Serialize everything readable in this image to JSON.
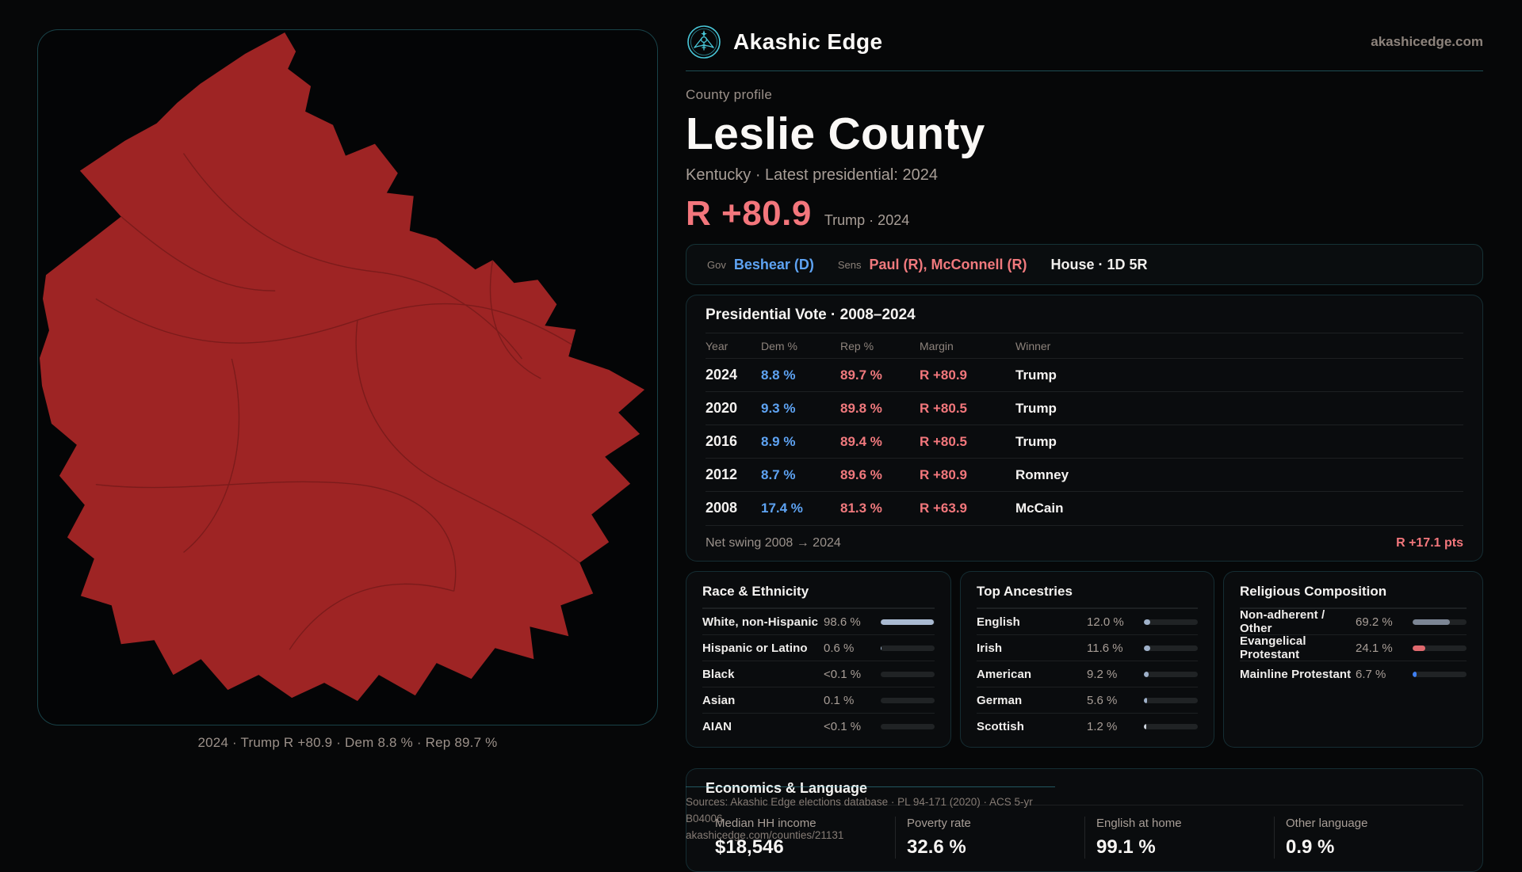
{
  "brand": {
    "name": "Akashic Edge",
    "domain": "akashicedge.com"
  },
  "profile": {
    "kicker": "County profile",
    "title": "Leslie County",
    "subtitle": "Kentucky · Latest presidential: 2024",
    "margin_big": "R +80.9",
    "margin_context": "Trump · 2024"
  },
  "map": {
    "caption": "2024 · Trump R +80.9 · Dem 8.8 % · Rep 89.7 %"
  },
  "officials": {
    "gov_label": "Gov",
    "gov_value": "Beshear (D)",
    "sens_label": "Sens",
    "sens_value": "Paul (R), McConnell (R)",
    "house_value": "House · 1D 5R"
  },
  "vote_table": {
    "title": "Presidential Vote · 2008–2024",
    "columns": {
      "year": "Year",
      "dem": "Dem %",
      "rep": "Rep %",
      "margin": "Margin",
      "winner": "Winner"
    },
    "rows": [
      {
        "year": "2024",
        "dem": "8.8 %",
        "rep": "89.7 %",
        "margin": "R +80.9",
        "winner": "Trump"
      },
      {
        "year": "2020",
        "dem": "9.3 %",
        "rep": "89.8 %",
        "margin": "R +80.5",
        "winner": "Trump"
      },
      {
        "year": "2016",
        "dem": "8.9 %",
        "rep": "89.4 %",
        "margin": "R +80.5",
        "winner": "Trump"
      },
      {
        "year": "2012",
        "dem": "8.7 %",
        "rep": "89.6 %",
        "margin": "R +80.9",
        "winner": "Romney"
      },
      {
        "year": "2008",
        "dem": "17.4 %",
        "rep": "81.3 %",
        "margin": "R +63.9",
        "winner": "McCain"
      }
    ],
    "net_swing_label": "Net swing 2008 → 2024",
    "net_swing_value": "R +17.1 pts"
  },
  "panels": [
    {
      "title": "Race & Ethnicity",
      "rows": [
        {
          "label": "White, non-Hispanic",
          "value": "98.6 %",
          "pct": 98.6,
          "fill": "#a9bad1"
        },
        {
          "label": "Hispanic or Latino",
          "value": "0.6 %",
          "pct": 0.6,
          "fill": "#a9bad1"
        },
        {
          "label": "Black",
          "value": "<0.1 %",
          "pct": 0.05,
          "fill": "#a9bad1"
        },
        {
          "label": "Asian",
          "value": "0.1 %",
          "pct": 0.1,
          "fill": "#a9bad1"
        },
        {
          "label": "AIAN",
          "value": "<0.1 %",
          "pct": 0.05,
          "fill": "#a9bad1"
        }
      ]
    },
    {
      "title": "Top Ancestries",
      "rows": [
        {
          "label": "English",
          "value": "12.0 %",
          "pct": 12.0,
          "fill": "#9fb1c9"
        },
        {
          "label": "Irish",
          "value": "11.6 %",
          "pct": 11.6,
          "fill": "#9fb1c9"
        },
        {
          "label": "American",
          "value": "9.2 %",
          "pct": 9.2,
          "fill": "#9fb1c9"
        },
        {
          "label": "German",
          "value": "5.6 %",
          "pct": 5.6,
          "fill": "#9fb1c9"
        },
        {
          "label": "Scottish",
          "value": "1.2 %",
          "pct": 1.2,
          "fill": "#cfd6df"
        }
      ]
    },
    {
      "title": "Religious Composition",
      "rows": [
        {
          "label": "Non-adherent / Other",
          "value": "69.2 %",
          "pct": 69.2,
          "fill": "#7c8695"
        },
        {
          "label": "Evangelical Protestant",
          "value": "24.1 %",
          "pct": 24.1,
          "fill": "#e0696e"
        },
        {
          "label": "Mainline Protestant",
          "value": "6.7 %",
          "pct": 6.7,
          "fill": "#3f80f2"
        }
      ]
    }
  ],
  "economics": {
    "title": "Economics & Language",
    "stats": [
      {
        "label": "Median HH income",
        "value": "$18,546"
      },
      {
        "label": "Poverty rate",
        "value": "32.6 %"
      },
      {
        "label": "English at home",
        "value": "99.1 %"
      },
      {
        "label": "Other language",
        "value": "0.9 %"
      }
    ]
  },
  "footer": {
    "line1": "Sources: Akashic Edge elections database · PL 94-171 (2020) · ACS 5-yr B04006",
    "line2": "akashicedge.com/counties/21131"
  },
  "colors": {
    "brand_teal": "#49c7d8",
    "rep_red": "#f3777c",
    "dem_blue": "#5ea3f3",
    "county_fill": "#9e2424"
  }
}
